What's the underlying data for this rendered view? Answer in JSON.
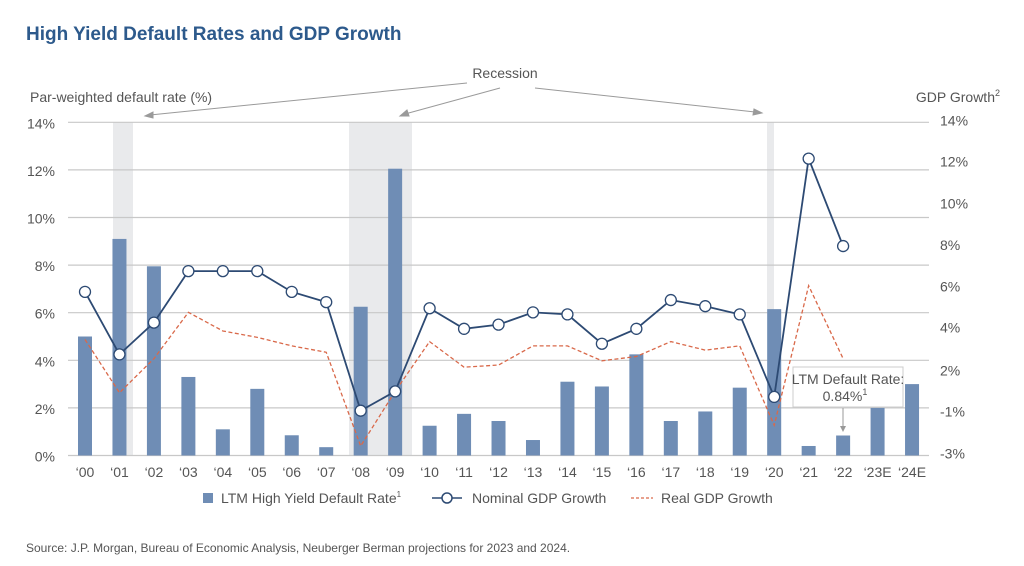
{
  "chart_data": {
    "type": "bar+line",
    "title": "High Yield Default Rates and GDP Growth",
    "ylabel_left": "Par-weighted default rate (%)",
    "ylabel_right": "GDP Growth",
    "ylabel_right_sup": "2",
    "left_ticks": [
      "0%",
      "2%",
      "4%",
      "6%",
      "8%",
      "10%",
      "12%",
      "14%"
    ],
    "left_tick_values": [
      0,
      2,
      4,
      6,
      8,
      10,
      12,
      14
    ],
    "right_ticks": [
      "14%",
      "12%",
      "10%",
      "8%",
      "6%",
      "4%",
      "2%",
      "-1%",
      "-3%"
    ],
    "right_tick_values": [
      14,
      12,
      10,
      8,
      6,
      4,
      2,
      -1,
      -3
    ],
    "ylim_left": [
      0,
      14
    ],
    "grid": true,
    "categories": [
      "‘00",
      "‘01",
      "‘02",
      "‘03",
      "‘04",
      "‘05",
      "‘06",
      "‘07",
      "‘08",
      "‘09",
      "‘10",
      "‘11",
      "‘12",
      "‘13",
      "‘14",
      "‘15",
      "‘16",
      "‘17",
      "‘18",
      "‘19",
      "‘20",
      "‘21",
      "‘22",
      "‘23E",
      "‘24E"
    ],
    "series": [
      {
        "name": "LTM High Yield Default Rate",
        "sup": "1",
        "type": "bar",
        "axis": "left",
        "color": "#6f8db5",
        "values": [
          5.0,
          9.1,
          7.95,
          3.3,
          1.1,
          2.8,
          0.85,
          0.35,
          6.25,
          12.05,
          1.25,
          1.75,
          1.45,
          0.65,
          3.1,
          2.9,
          4.25,
          1.45,
          1.85,
          2.85,
          6.15,
          0.4,
          0.84,
          2.0,
          3.0
        ]
      },
      {
        "name": "Nominal GDP Growth",
        "type": "line",
        "axis": "right",
        "color": "#2d4a73",
        "marker": "open-circle",
        "values": [
          5.7,
          2.7,
          4.2,
          6.7,
          6.7,
          6.7,
          5.7,
          5.2,
          -1.0,
          0.4,
          4.9,
          3.9,
          4.1,
          4.7,
          4.6,
          3.2,
          3.9,
          5.3,
          5.0,
          4.6,
          0.0,
          12.1,
          7.9,
          null,
          null
        ]
      },
      {
        "name": "Real GDP Growth",
        "type": "line",
        "axis": "right",
        "color": "#d9694a",
        "dash": true,
        "values": [
          3.4,
          0.3,
          2.5,
          4.7,
          3.8,
          3.5,
          3.1,
          2.8,
          -2.7,
          0.4,
          3.3,
          2.1,
          2.2,
          3.1,
          3.1,
          2.4,
          2.6,
          3.3,
          2.9,
          3.1,
          -1.7,
          6.0,
          2.5,
          null,
          null
        ]
      }
    ],
    "recessions": [
      [
        "‘01",
        "‘01"
      ],
      [
        "‘08",
        "‘09"
      ],
      [
        "‘20",
        "‘20"
      ]
    ],
    "annotations": {
      "recession": "Recession",
      "callout_line1": "LTM Default Rate:",
      "callout_line2": "0.84%",
      "callout_sup": "1"
    },
    "legend_position": "bottom"
  },
  "source": "Source: J.P. Morgan, Bureau of Economic Analysis, Neuberger Berman projections for 2023 and 2024."
}
